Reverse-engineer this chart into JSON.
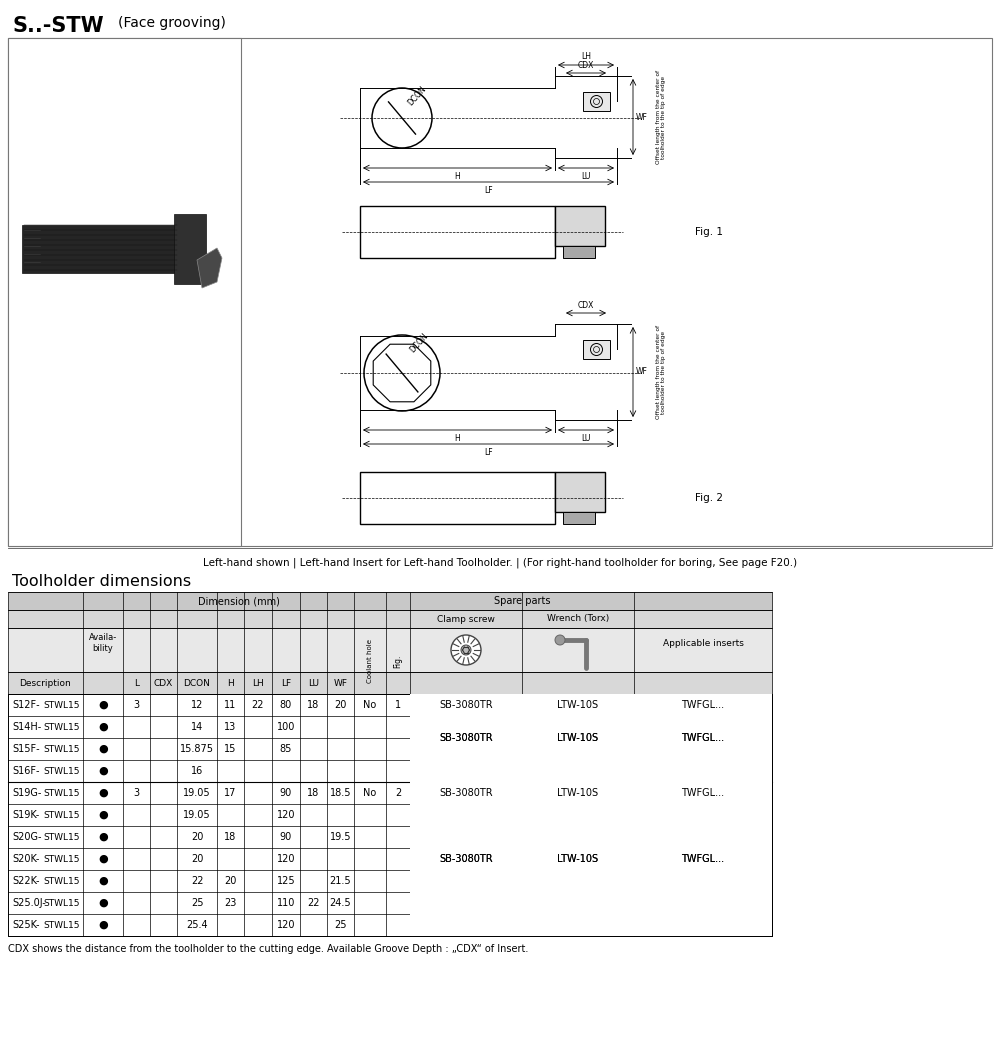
{
  "title_bold": "S..-STW",
  "title_normal": "(Face grooving)",
  "caption": "Left-hand shown | Left-hand Insert for Left-hand Toolholder. | (For right-hand toolholder for boring, See page F20.)",
  "footnote": "CDX shows the distance from the toolholder to the cutting edge. Available Groove Depth : „CDX“ of Insert.",
  "section_title": "Toolholder dimensions",
  "col_labels": [
    "Description",
    "Availa-\nbility",
    "L",
    "CDX",
    "DCON",
    "H",
    "LH",
    "LF",
    "LU",
    "WF",
    "Coolant hole",
    "Fig.",
    "Clamp screw",
    "Wrench (Torx)",
    "Applicable inserts"
  ],
  "spare_parts_label": "Spare parts",
  "dimension_label": "Dimension (mm)",
  "rows": [
    [
      "S12F-",
      "STWL15",
      "3",
      "",
      "12",
      "11",
      "22",
      "80",
      "18",
      "20",
      "No",
      "1",
      "SB-3080TR",
      "LTW-10S",
      "TWFGL..."
    ],
    [
      "S14H-",
      "STWL15",
      "",
      "",
      "14",
      "13",
      "",
      "100",
      "",
      "",
      "",
      "",
      "",
      "",
      ""
    ],
    [
      "S15F-",
      "STWL15",
      "",
      "",
      "15.875",
      "15",
      "",
      "85",
      "",
      "",
      "",
      "",
      "",
      "",
      ""
    ],
    [
      "S16F-",
      "STWL15",
      "",
      "",
      "16",
      "",
      "",
      "",
      "",
      "",
      "",
      "",
      "",
      "",
      ""
    ],
    [
      "S19G-",
      "STWL15",
      "3",
      "",
      "19.05",
      "17",
      "",
      "90",
      "18",
      "18.5",
      "No",
      "2",
      "SB-3080TR",
      "LTW-10S",
      "TWFGL..."
    ],
    [
      "S19K-",
      "STWL15",
      "",
      "",
      "19.05",
      "",
      "",
      "120",
      "",
      "",
      "",
      "",
      "",
      "",
      ""
    ],
    [
      "S20G-",
      "STWL15",
      "",
      "",
      "20",
      "18",
      "",
      "90",
      "",
      "19.5",
      "",
      "",
      "",
      "",
      ""
    ],
    [
      "S20K-",
      "STWL15",
      "",
      "",
      "20",
      "",
      "",
      "120",
      "",
      "",
      "",
      "",
      "",
      "",
      ""
    ],
    [
      "S22K-",
      "STWL15",
      "",
      "",
      "22",
      "20",
      "",
      "125",
      "",
      "21.5",
      "",
      "",
      "",
      "",
      ""
    ],
    [
      "S25.0J-",
      "STWL15",
      "",
      "",
      "25",
      "23",
      "",
      "110",
      "22",
      "24.5",
      "",
      "",
      "",
      "",
      ""
    ],
    [
      "S25K-",
      "STWL15",
      "",
      "",
      "25.4",
      "",
      "",
      "120",
      "",
      "25",
      "",
      "",
      "",
      "",
      ""
    ]
  ]
}
